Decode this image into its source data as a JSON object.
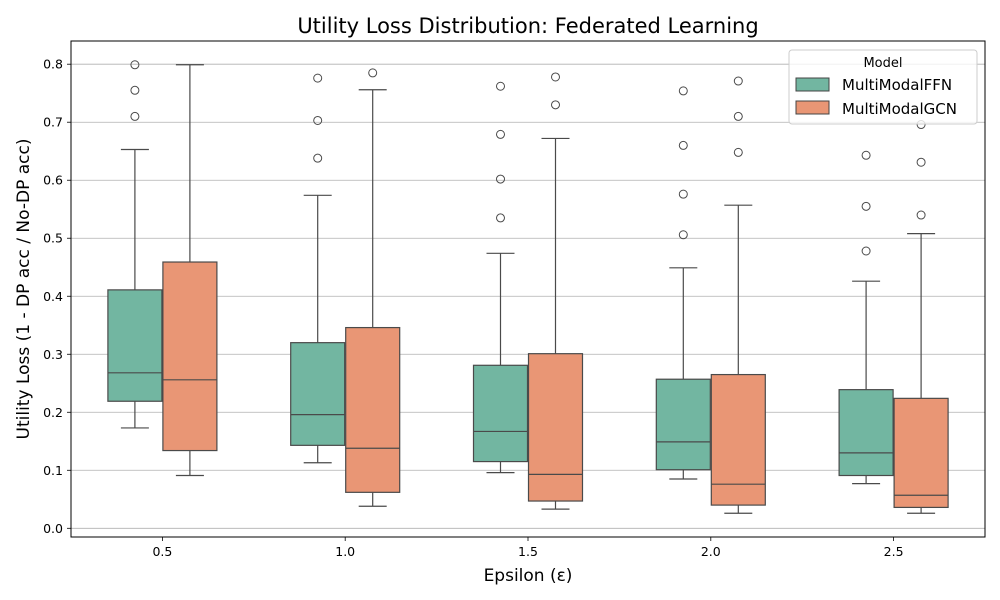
{
  "chart_data": {
    "type": "box",
    "title": "Utility Loss Distribution: Federated Learning",
    "xlabel": "Epsilon (ε)",
    "ylabel": "Utility Loss (1 - DP acc / No-DP acc)",
    "ylim": [
      -0.015,
      0.84
    ],
    "yticks": [
      0.0,
      0.1,
      0.2,
      0.3,
      0.4,
      0.5,
      0.6,
      0.7,
      0.8
    ],
    "ytick_labels": [
      "0.0",
      "0.1",
      "0.2",
      "0.3",
      "0.4",
      "0.5",
      "0.6",
      "0.7",
      "0.8"
    ],
    "categories": [
      "0.5",
      "1.0",
      "1.5",
      "2.0",
      "2.5"
    ],
    "grid": "horizontal",
    "legend": {
      "title": "Model",
      "placement": "top-right"
    },
    "series": [
      {
        "name": "MultiModalFFN",
        "color": "#72b6a1",
        "boxes": [
          {
            "whisker_low": 0.173,
            "q1": 0.219,
            "median": 0.268,
            "q3": 0.411,
            "whisker_high": 0.653,
            "outliers": [
              0.71,
              0.755,
              0.799
            ]
          },
          {
            "whisker_low": 0.113,
            "q1": 0.143,
            "median": 0.196,
            "q3": 0.32,
            "whisker_high": 0.574,
            "outliers": [
              0.638,
              0.703,
              0.776
            ]
          },
          {
            "whisker_low": 0.096,
            "q1": 0.115,
            "median": 0.167,
            "q3": 0.281,
            "whisker_high": 0.474,
            "outliers": [
              0.535,
              0.602,
              0.679,
              0.762
            ]
          },
          {
            "whisker_low": 0.085,
            "q1": 0.101,
            "median": 0.149,
            "q3": 0.257,
            "whisker_high": 0.449,
            "outliers": [
              0.506,
              0.576,
              0.66,
              0.754
            ]
          },
          {
            "whisker_low": 0.077,
            "q1": 0.091,
            "median": 0.13,
            "q3": 0.239,
            "whisker_high": 0.426,
            "outliers": [
              0.478,
              0.555,
              0.643
            ]
          }
        ]
      },
      {
        "name": "MultiModalGCN",
        "color": "#e99675",
        "boxes": [
          {
            "whisker_low": 0.091,
            "q1": 0.134,
            "median": 0.256,
            "q3": 0.459,
            "whisker_high": 0.799,
            "outliers": []
          },
          {
            "whisker_low": 0.038,
            "q1": 0.062,
            "median": 0.138,
            "q3": 0.346,
            "whisker_high": 0.756,
            "outliers": [
              0.785
            ]
          },
          {
            "whisker_low": 0.033,
            "q1": 0.047,
            "median": 0.093,
            "q3": 0.301,
            "whisker_high": 0.672,
            "outliers": [
              0.73,
              0.778
            ]
          },
          {
            "whisker_low": 0.026,
            "q1": 0.04,
            "median": 0.076,
            "q3": 0.265,
            "whisker_high": 0.557,
            "outliers": [
              0.648,
              0.71,
              0.771
            ]
          },
          {
            "whisker_low": 0.026,
            "q1": 0.036,
            "median": 0.057,
            "q3": 0.224,
            "whisker_high": 0.508,
            "outliers": [
              0.54,
              0.631,
              0.696
            ]
          }
        ]
      }
    ]
  }
}
